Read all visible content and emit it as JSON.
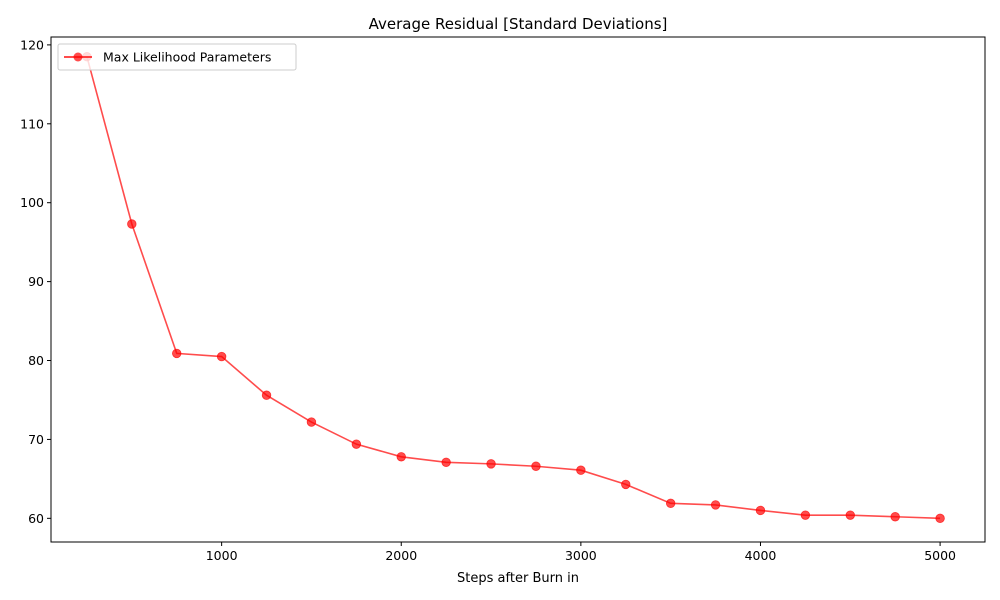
{
  "chart_data": {
    "type": "line",
    "title": "Average Residual [Standard Deviations]",
    "xlabel": "Steps after Burn in",
    "ylabel": "",
    "xlim": [
      50,
      5250
    ],
    "ylim": [
      57,
      121
    ],
    "x_ticks": [
      1000,
      2000,
      3000,
      4000,
      5000
    ],
    "y_ticks": [
      60,
      70,
      80,
      90,
      100,
      110,
      120
    ],
    "grid": false,
    "legend_position": "top-left",
    "series": [
      {
        "name": "Max Likelihood Parameters",
        "color": "#ff0000",
        "marker": "circle",
        "x": [
          250,
          500,
          750,
          1000,
          1250,
          1500,
          1750,
          2000,
          2250,
          2500,
          2750,
          3000,
          3250,
          3500,
          3750,
          4000,
          4250,
          4500,
          4750,
          5000
        ],
        "y": [
          118.5,
          97.3,
          80.9,
          80.5,
          75.6,
          72.2,
          69.4,
          67.8,
          67.1,
          66.9,
          66.6,
          66.1,
          64.3,
          61.9,
          61.7,
          61.0,
          60.4,
          60.4,
          60.2,
          60.0
        ]
      }
    ]
  }
}
